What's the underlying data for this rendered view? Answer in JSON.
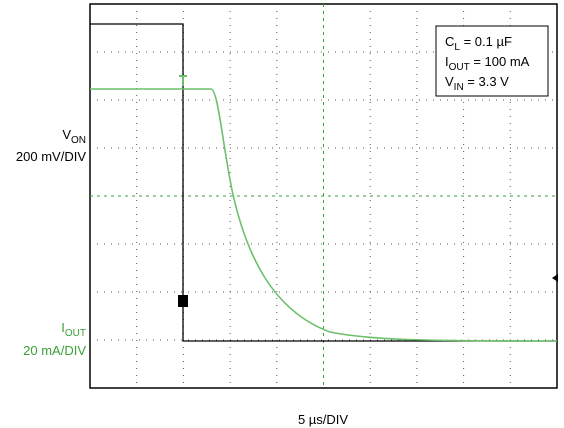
{
  "labels": {
    "von": {
      "main": "V",
      "sub": "ON"
    },
    "von_scale": "200 mV/DIV",
    "iout": {
      "main": "I",
      "sub": "OUT"
    },
    "iout_scale": "20 mA/DIV",
    "time_scale": "5 µs/DIV"
  },
  "legend": [
    {
      "main": "C",
      "sub": "L",
      "rest": " = 0.1 µF"
    },
    {
      "main": "I",
      "sub": "OUT",
      "rest": " = 100 mA"
    },
    {
      "main": "V",
      "sub": "IN",
      "rest": " = 3.3 V"
    }
  ]
}
